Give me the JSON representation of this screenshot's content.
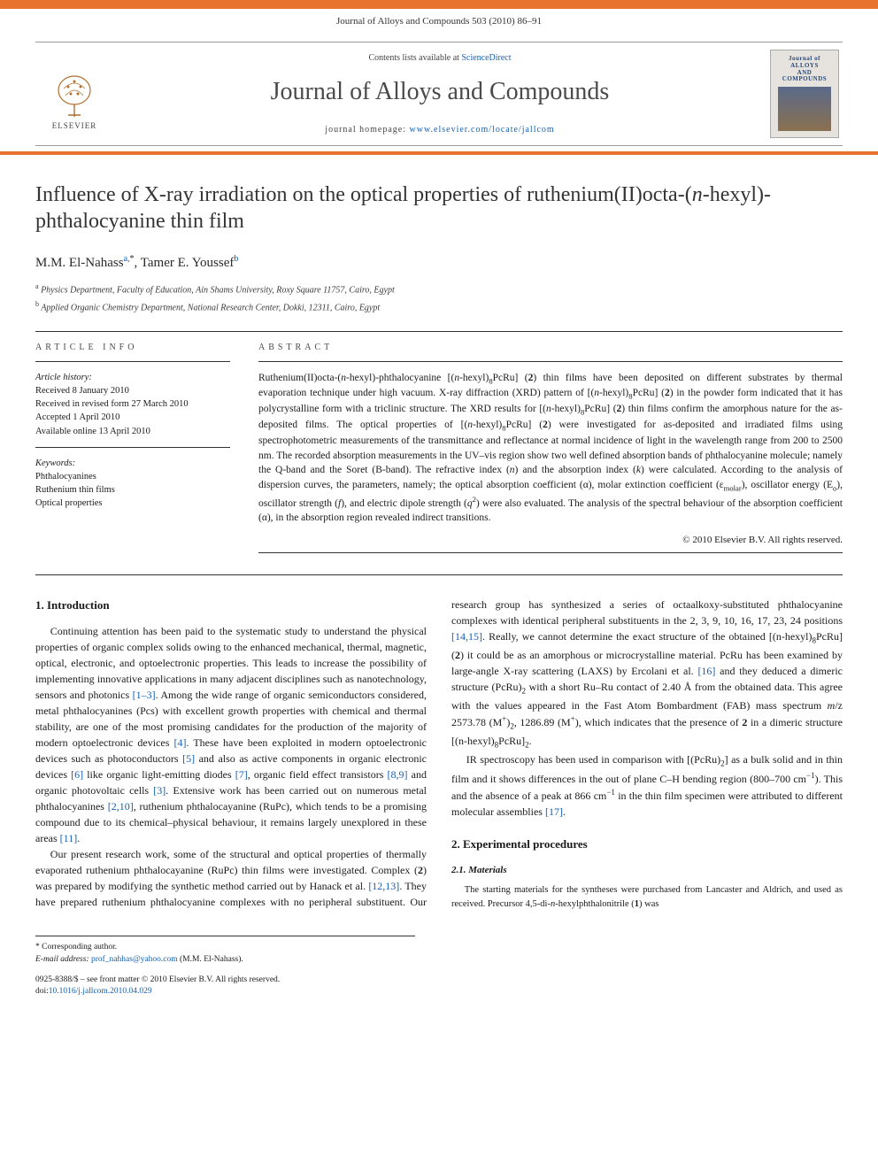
{
  "colors": {
    "accent": "#e8732f",
    "link": "#1560b3",
    "text": "#1a1a1a",
    "muted": "#4a4a4a"
  },
  "header": {
    "journal_ref": "Journal of Alloys and Compounds 503 (2010) 86–91",
    "contents_prefix": "Contents lists available at ",
    "contents_link": "ScienceDirect",
    "journal_title": "Journal of Alloys and Compounds",
    "homepage_prefix": "journal homepage: ",
    "homepage_url": "www.elsevier.com/locate/jallcom",
    "publisher": "ELSEVIER",
    "cover_caption_top": "Journal of",
    "cover_caption_mid": "ALLOYS",
    "cover_caption_and": "AND",
    "cover_caption_bot": "COMPOUNDS"
  },
  "article": {
    "title_html": "Influence of X-ray irradiation on the optical properties of ruthenium(II)octa-(<i>n</i>-hexyl)-phthalocyanine thin film",
    "authors_html": "M.M. El-Nahass<sup>a,</sup><sup class=\"star\">*</sup>, Tamer E. Youssef<sup>b</sup>",
    "affiliations": [
      {
        "marker": "a",
        "text": "Physics Department, Faculty of Education, Ain Shams University, Roxy Square 11757, Cairo, Egypt"
      },
      {
        "marker": "b",
        "text": "Applied Organic Chemistry Department, National Research Center, Dokki, 12311, Cairo, Egypt"
      }
    ]
  },
  "info": {
    "label": "ARTICLE INFO",
    "history_head": "Article history:",
    "history": [
      "Received 8 January 2010",
      "Received in revised form 27 March 2010",
      "Accepted 1 April 2010",
      "Available online 13 April 2010"
    ],
    "keywords_head": "Keywords:",
    "keywords": [
      "Phthalocyanines",
      "Ruthenium thin films",
      "Optical properties"
    ]
  },
  "abstract": {
    "label": "ABSTRACT",
    "text_html": "Ruthenium(II)octa-(<i>n</i>-hexyl)-phthalocyanine [(<i>n</i>-hexyl)<sub>8</sub>PcRu] (<b>2</b>) thin films have been deposited on different substrates by thermal evaporation technique under high vacuum. X-ray diffraction (XRD) pattern of [(<i>n</i>-hexyl)<sub>8</sub>PcRu] (<b>2</b>) in the powder form indicated that it has polycrystalline form with a triclinic structure. The XRD results for [(<i>n</i>-hexyl)<sub>8</sub>PcRu] (<b>2</b>) thin films confirm the amorphous nature for the as-deposited films. The optical properties of [(<i>n</i>-hexyl)<sub>8</sub>PcRu] (<b>2</b>) were investigated for as-deposited and irradiated films using spectrophotometric measurements of the transmittance and reflectance at normal incidence of light in the wavelength range from 200 to 2500 nm. The recorded absorption measurements in the UV–vis region show two well defined absorption bands of phthalocyanine molecule; namely the Q-band and the Soret (B-band). The refractive index (<i>n</i>) and the absorption index (<i>k</i>) were calculated. According to the analysis of dispersion curves, the parameters, namely; the optical absorption coefficient (α), molar extinction coefficient (ε<sub>molar</sub>), oscillator energy (E<sub>o</sub>), oscillator strength (<i>f</i>), and electric dipole strength (<i>q</i><sup>2</sup>) were also evaluated. The analysis of the spectral behaviour of the absorption coefficient (α), in the absorption region revealed indirect transitions.",
    "copyright": "© 2010 Elsevier B.V. All rights reserved."
  },
  "body": {
    "section1_heading": "1.  Introduction",
    "para1_html": "Continuing attention has been paid to the systematic study to understand the physical properties of organic complex solids owing to the enhanced mechanical, thermal, magnetic, optical, electronic, and optoelectronic properties. This leads to increase the possibility of implementing innovative applications in many adjacent disciplines such as nanotechnology, sensors and photonics <a href=\"#\">[1–3]</a>. Among the wide range of organic semiconductors considered, metal phthalocyanines (Pcs) with excellent growth properties with chemical and thermal stability, are one of the most promising candidates for the production of the majority of modern optoelectronic devices <a href=\"#\">[4]</a>. These have been exploited in modern optoelectronic devices such as photoconductors <a href=\"#\">[5]</a> and also as active components in organic electronic devices <a href=\"#\">[6]</a> like organic light-emitting diodes <a href=\"#\">[7]</a>, organic field effect transistors <a href=\"#\">[8,9]</a> and organic photovoltaic cells <a href=\"#\">[3]</a>. Extensive work has been carried out on numerous metal phthalocyanines <a href=\"#\">[2,10]</a>, ruthenium phthalocayanine (RuPc), which tends to be a promising compound due to its chemical–physical behaviour, it remains largely unexplored in these areas <a href=\"#\">[11]</a>.",
    "para2_html": "Our present research work, some of the structural and optical properties of thermally evaporated ruthenium phthalocayanine (RuPc) thin films were investigated. Complex (<b>2</b>) was prepared by modifying the synthetic method carried out by Hanack et al. <a href=\"#\">[12,13]</a>. They have prepared ruthenium phthalocyanine complexes with no peripheral substituent. Our research group has synthesized a series of octaalkoxy-substituted phthalocyanine complexes with identical peripheral substituents in the 2, 3, 9, 10, 16, 17, 23, 24 positions <a href=\"#\">[14,15]</a>. Really, we cannot determine the exact structure of the obtained [(n-hexyl)<sub>8</sub>PcRu] (<b>2</b>) it could be as an amorphous or microcrystalline material. PcRu has been examined by large-angle X-ray scattering (LAXS) by Ercolani et al. <a href=\"#\">[16]</a> and they deduced a dimeric structure (PcRu)<sub>2</sub> with a short Ru–Ru contact of 2.40 Å from the obtained data. This agree with the values appeared in the Fast Atom Bombardment (FAB) mass spectrum <i>m</i>/z 2573.78 (M<sup>+</sup>)<sub>2</sub>, 1286.89 (M<sup>+</sup>), which indicates that the presence of <b>2</b> in a dimeric structure [(n-hexyl)<sub>8</sub>PcRu]<sub>2</sub>.",
    "para3_html": "IR spectroscopy has been used in comparison with [(PcRu)<sub>2</sub>] as a bulk solid and in thin film and it shows differences in the out of plane C–H bending region (800–700 cm<sup>−1</sup>). This and the absence of a peak at 866 cm<sup>−1</sup> in the thin film specimen were attributed to different molecular assemblies <a href=\"#\">[17]</a>.",
    "section2_heading": "2.  Experimental procedures",
    "section21_heading": "2.1.  Materials",
    "para4_html": "The starting materials for the syntheses were purchased from Lancaster and Aldrich, and used as received. Precursor 4,5-di-<i>n</i>-hexylphthalonitrile (<b>1</b>) was"
  },
  "footnotes": {
    "corr": "Corresponding author.",
    "email_label": "E-mail address:",
    "email": "prof_nahhas@yahoo.com",
    "email_owner": "(M.M. El-Nahass)."
  },
  "footer": {
    "issn": "0925-8388/$ – see front matter © 2010 Elsevier B.V. All rights reserved.",
    "doi_label": "doi:",
    "doi": "10.1016/j.jallcom.2010.04.029"
  }
}
